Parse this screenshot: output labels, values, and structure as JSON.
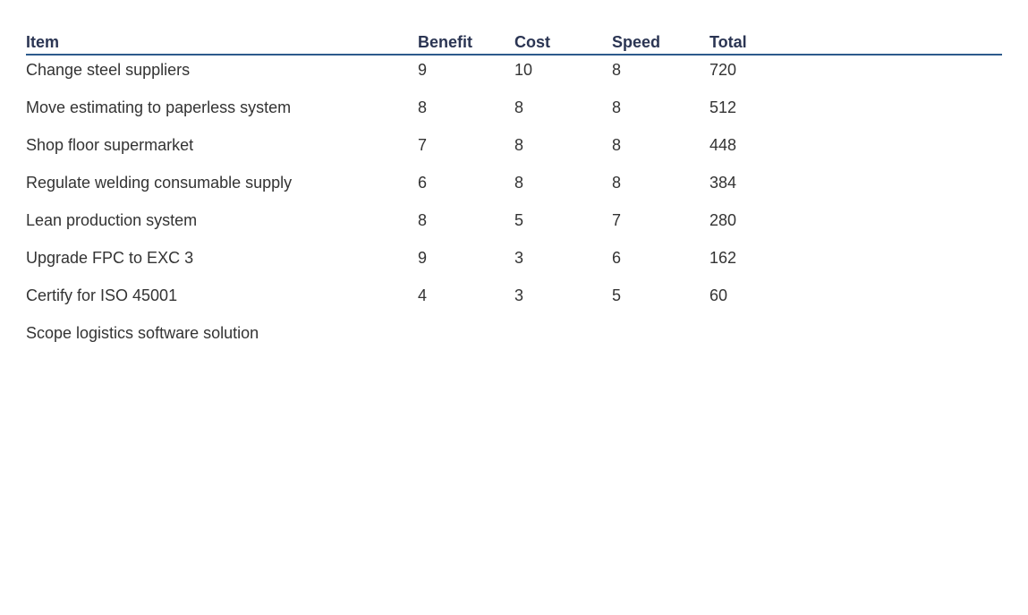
{
  "table": {
    "headers": {
      "item": "Item",
      "benefit": "Benefit",
      "cost": "Cost",
      "speed": "Speed",
      "total": "Total"
    },
    "rows": [
      {
        "item": "Change steel suppliers",
        "benefit": "9",
        "cost": "10",
        "speed": "8",
        "total": "720"
      },
      {
        "item": "Move estimating to paperless system",
        "benefit": "8",
        "cost": "8",
        "speed": "8",
        "total": "512"
      },
      {
        "item": "Shop floor supermarket",
        "benefit": "7",
        "cost": "8",
        "speed": "8",
        "total": "448"
      },
      {
        "item": "Regulate welding consumable supply",
        "benefit": "6",
        "cost": "8",
        "speed": "8",
        "total": "384"
      },
      {
        "item": "Lean production system",
        "benefit": "8",
        "cost": "5",
        "speed": "7",
        "total": "280"
      },
      {
        "item": "Upgrade FPC to EXC 3",
        "benefit": "9",
        "cost": "3",
        "speed": "6",
        "total": "162"
      },
      {
        "item": "Certify for ISO 45001",
        "benefit": "4",
        "cost": "3",
        "speed": "5",
        "total": "60"
      },
      {
        "item": "Scope logistics software solution",
        "benefit": "",
        "cost": "",
        "speed": "",
        "total": ""
      }
    ]
  },
  "colors": {
    "header_text": "#2b3553",
    "header_rule": "#2d5a8c",
    "body_text": "#333333"
  }
}
